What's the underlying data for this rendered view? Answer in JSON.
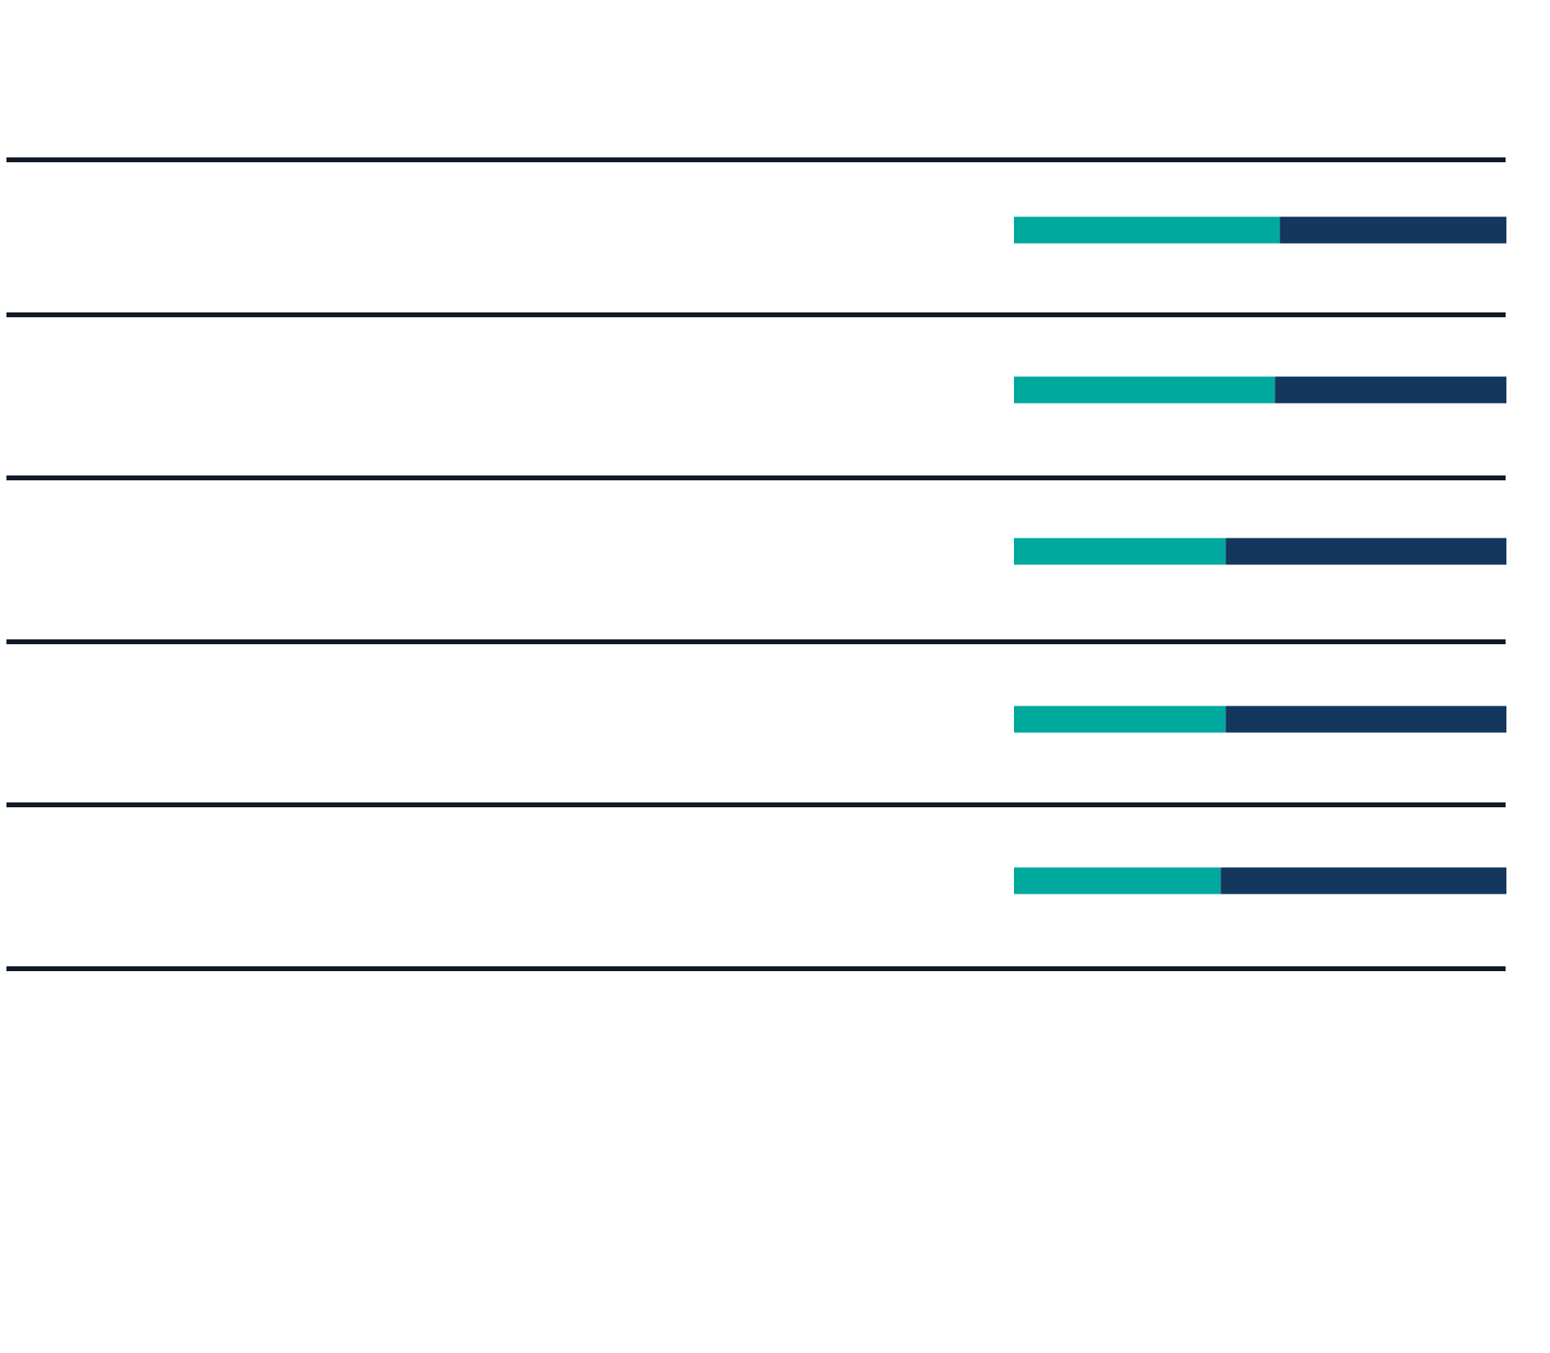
{
  "chart_data": {
    "type": "bar",
    "orientation": "horizontal",
    "stacked": true,
    "title": "",
    "xlabel": "",
    "ylabel": "",
    "categories": [
      "",
      "",
      "",
      "",
      ""
    ],
    "series": [
      {
        "values": [
          54,
          53,
          43,
          43,
          42
        ]
      },
      {
        "values": [
          46,
          47,
          57,
          57,
          58
        ]
      }
    ],
    "xlim": [
      0,
      100
    ],
    "row_separators": true,
    "grid": false,
    "legend": "none",
    "colors": {
      "series_1": "#00a99d",
      "series_2": "#14375e",
      "separator": "#111a26",
      "background": "#ffffff"
    }
  }
}
